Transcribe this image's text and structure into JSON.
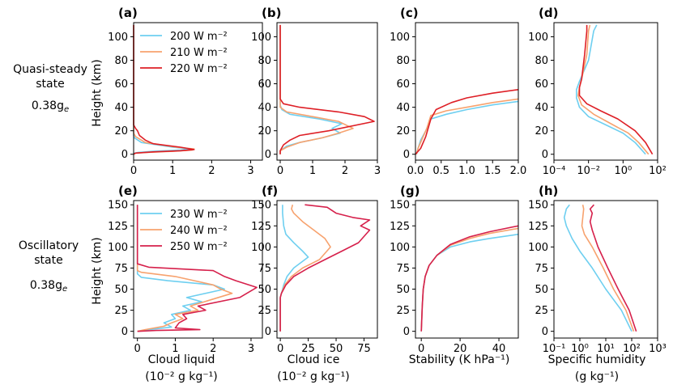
{
  "figure": {
    "rows": [
      {
        "label_lines": [
          "Quasi-steady",
          "state"
        ],
        "gravity": "0.38g",
        "gravity_sub": "e"
      },
      {
        "label_lines": [
          "Oscillatory",
          "state"
        ],
        "gravity": "0.38g",
        "gravity_sub": "e"
      }
    ],
    "ylabel": "Height (km)",
    "column_xlabels": [
      [
        "Cloud liquid",
        "(10⁻² g kg⁻¹)"
      ],
      [
        "Cloud ice",
        "(10⁻² g kg⁻¹)"
      ],
      [
        "Stability (K hPa⁻¹)"
      ],
      [
        "Specific humidity",
        "(g kg⁻¹)"
      ]
    ],
    "legends": [
      {
        "row": 0,
        "entries": [
          {
            "text": "200 W m⁻²",
            "color": "#6ecff0"
          },
          {
            "text": "210 W m⁻²",
            "color": "#f7a26e"
          },
          {
            "text": "220 W m⁻²",
            "color": "#de1f26"
          }
        ]
      },
      {
        "row": 1,
        "entries": [
          {
            "text": "230 W m⁻²",
            "color": "#6ecff0"
          },
          {
            "text": "240 W m⁻²",
            "color": "#f7a26e"
          },
          {
            "text": "250 W m⁻²",
            "color": "#d6204b"
          }
        ]
      }
    ]
  },
  "chart_data": [
    {
      "panel": "(a)",
      "type": "line",
      "xlabel": "",
      "ylabel": "Height (km)",
      "xlim": [
        0,
        3.3
      ],
      "ylim": [
        -5,
        112
      ],
      "xticks": [
        0,
        1,
        2,
        3
      ],
      "xticklabels": [
        "0",
        "1",
        "2",
        "3"
      ],
      "yticks": [
        0,
        20,
        40,
        60,
        80,
        100
      ],
      "yticklabels": [
        "0",
        "20",
        "40",
        "60",
        "80",
        "100"
      ],
      "series": [
        {
          "name": "200 W m⁻²",
          "color": "#6ecff0",
          "x": [
            0,
            0.02,
            0.1,
            0.5,
            1.2,
            1.45,
            1.0,
            0.2,
            0.02,
            0,
            0
          ],
          "y": [
            0,
            1,
            1.5,
            2.5,
            3.5,
            4.5,
            6,
            10,
            14,
            16,
            110
          ]
        },
        {
          "name": "210 W m⁻²",
          "color": "#f7a26e",
          "x": [
            0,
            0.05,
            0.3,
            1.0,
            1.5,
            1.55,
            1.1,
            0.3,
            0.05,
            0,
            0
          ],
          "y": [
            0,
            1,
            1.5,
            2.5,
            3.5,
            4.5,
            6,
            10,
            15,
            18,
            110
          ]
        },
        {
          "name": "220 W m⁻²",
          "color": "#de1f26",
          "x": [
            0,
            0.05,
            0.5,
            1.2,
            1.55,
            1.2,
            0.5,
            0.3,
            0.15,
            0.1,
            0.05,
            0,
            0
          ],
          "y": [
            0,
            1,
            2,
            3,
            4,
            6,
            9,
            12,
            16,
            20,
            22,
            25,
            110
          ]
        }
      ]
    },
    {
      "panel": "(b)",
      "type": "line",
      "xlabel": "",
      "ylabel": "",
      "xlim": [
        -0.1,
        3.0
      ],
      "ylim": [
        -5,
        112
      ],
      "xticks": [
        0,
        1,
        2,
        3
      ],
      "xticklabels": [
        "0",
        "1",
        "2",
        "3"
      ],
      "yticks": [
        0,
        20,
        40,
        60,
        80,
        100
      ],
      "yticklabels": [
        "0",
        "20",
        "40",
        "60",
        "80",
        "100"
      ],
      "series": [
        {
          "name": "200 W m⁻²",
          "color": "#6ecff0",
          "x": [
            0,
            0,
            0.2,
            0.6,
            1.3,
            1.85,
            1.6,
            1.9,
            1.2,
            0.3,
            0.05,
            0,
            0
          ],
          "y": [
            0,
            3,
            7,
            10,
            14,
            18,
            22,
            26,
            30,
            34,
            38,
            42,
            110
          ]
        },
        {
          "name": "210 W m⁻²",
          "color": "#f7a26e",
          "x": [
            0,
            0,
            0.2,
            0.6,
            1.3,
            1.8,
            2.25,
            1.8,
            1.0,
            0.2,
            0,
            0
          ],
          "y": [
            0,
            3,
            6,
            10,
            14,
            18,
            22,
            28,
            32,
            36,
            40,
            110
          ]
        },
        {
          "name": "220 W m⁻²",
          "color": "#de1f26",
          "x": [
            0,
            0,
            0.1,
            0.3,
            0.6,
            1.5,
            2.9,
            2.6,
            1.8,
            0.6,
            0.1,
            0,
            0
          ],
          "y": [
            0,
            3,
            8,
            12,
            16,
            20,
            28,
            32,
            36,
            40,
            43,
            47,
            110
          ]
        }
      ]
    },
    {
      "panel": "(c)",
      "type": "line",
      "xlabel": "",
      "ylabel": "",
      "xlim": [
        0,
        2.0
      ],
      "ylim": [
        -5,
        112
      ],
      "xticks": [
        0,
        0.5,
        1.0,
        1.5,
        2.0
      ],
      "xticklabels": [
        "0.0",
        "0.5",
        "1.0",
        "1.5",
        "2.0"
      ],
      "yticks": [
        0,
        20,
        40,
        60,
        80,
        100
      ],
      "yticklabels": [
        "0",
        "20",
        "40",
        "60",
        "80",
        "100"
      ],
      "series": [
        {
          "name": "200 W m⁻²",
          "color": "#6ecff0",
          "x": [
            0.02,
            0.05,
            0.1,
            0.2,
            0.3,
            0.6,
            1.0,
            1.5,
            2.0
          ],
          "y": [
            0,
            5,
            12,
            20,
            30,
            34,
            38,
            42,
            45
          ]
        },
        {
          "name": "210 W m⁻²",
          "color": "#f7a26e",
          "x": [
            0.02,
            0.05,
            0.12,
            0.22,
            0.3,
            0.6,
            1.0,
            1.5,
            2.0
          ],
          "y": [
            0,
            5,
            12,
            22,
            33,
            37,
            40,
            44,
            47
          ]
        },
        {
          "name": "220 W m⁻²",
          "color": "#de1f26",
          "x": [
            0.0,
            0.1,
            0.2,
            0.3,
            0.4,
            0.7,
            1.0,
            1.5,
            2.0
          ],
          "y": [
            0,
            5,
            15,
            30,
            38,
            44,
            48,
            52,
            55
          ]
        }
      ]
    },
    {
      "panel": "(d)",
      "type": "line",
      "xscale": "log",
      "xlabel": "",
      "ylabel": "",
      "xlim": [
        0.0001,
        100
      ],
      "ylim": [
        -5,
        112
      ],
      "xticks": [
        0.0001,
        0.01,
        1,
        100
      ],
      "xticklabels": [
        "10⁻⁴",
        "10⁻²",
        "10⁰",
        "10²"
      ],
      "yticks": [
        0,
        20,
        40,
        60,
        80,
        100
      ],
      "yticklabels": [
        "0",
        "20",
        "40",
        "60",
        "80",
        "100"
      ],
      "series": [
        {
          "name": "200 W m⁻²",
          "color": "#6ecff0",
          "x": [
            20,
            5,
            1,
            0.1,
            0.01,
            0.003,
            0.002,
            0.002,
            0.003,
            0.01,
            0.02,
            0.03
          ],
          "y": [
            0,
            10,
            18,
            25,
            32,
            40,
            48,
            55,
            62,
            80,
            105,
            110
          ]
        },
        {
          "name": "210 W m⁻²",
          "color": "#f7a26e",
          "x": [
            30,
            8,
            2,
            0.2,
            0.02,
            0.004,
            0.0025,
            0.003,
            0.004,
            0.008,
            0.01,
            0.012
          ],
          "y": [
            0,
            10,
            18,
            26,
            34,
            42,
            50,
            57,
            64,
            85,
            105,
            110
          ]
        },
        {
          "name": "220 W m⁻²",
          "color": "#de1f26",
          "x": [
            50,
            20,
            5,
            0.5,
            0.05,
            0.008,
            0.003,
            0.003,
            0.004,
            0.006,
            0.008,
            0.008
          ],
          "y": [
            0,
            10,
            20,
            30,
            37,
            43,
            50,
            57,
            64,
            85,
            105,
            110
          ]
        }
      ]
    },
    {
      "panel": "(e)",
      "type": "line",
      "xlabel": "Cloud liquid (10⁻² g kg⁻¹)",
      "ylabel": "Height (km)",
      "xlim": [
        -0.1,
        3.3
      ],
      "ylim": [
        -8,
        155
      ],
      "xticks": [
        0,
        1,
        2,
        3
      ],
      "xticklabels": [
        "0",
        "1",
        "2",
        "3"
      ],
      "yticks": [
        0,
        25,
        50,
        75,
        100,
        125,
        150
      ],
      "yticklabels": [
        "0",
        "25",
        "50",
        "75",
        "100",
        "125",
        "150"
      ],
      "series": [
        {
          "name": "230 W m⁻²",
          "color": "#6ecff0",
          "x": [
            0,
            0.3,
            0.9,
            0.7,
            1.0,
            0.9,
            1.4,
            1.2,
            1.7,
            1.3,
            2.3,
            2.0,
            0.8,
            0.1,
            0,
            0
          ],
          "y": [
            0,
            2,
            5,
            10,
            15,
            20,
            25,
            30,
            35,
            40,
            50,
            55,
            60,
            64,
            68,
            150
          ]
        },
        {
          "name": "240 W m⁻²",
          "color": "#f7a26e",
          "x": [
            0,
            0.2,
            0.7,
            0.9,
            1.2,
            1.0,
            1.6,
            1.4,
            2.5,
            2.2,
            2.0,
            1.0,
            0.1,
            0,
            0
          ],
          "y": [
            0,
            2,
            6,
            10,
            15,
            20,
            25,
            30,
            45,
            50,
            55,
            65,
            70,
            72,
            150
          ]
        },
        {
          "name": "250 W m⁻²",
          "color": "#d6204b",
          "x": [
            0,
            0.5,
            1.65,
            1.0,
            1.1,
            1.3,
            1.2,
            1.8,
            1.6,
            2.7,
            3.15,
            2.6,
            2.3,
            2.0,
            0.3,
            0,
            0
          ],
          "y": [
            0,
            1,
            2,
            4,
            10,
            15,
            20,
            25,
            30,
            40,
            52,
            60,
            65,
            72,
            76,
            80,
            150
          ]
        }
      ]
    },
    {
      "panel": "(f)",
      "type": "line",
      "xlabel": "Cloud ice (10⁻² g kg⁻¹)",
      "ylabel": "",
      "xlim": [
        -3,
        87
      ],
      "ylim": [
        -8,
        155
      ],
      "xticks": [
        0,
        25,
        50,
        75
      ],
      "xticklabels": [
        "0",
        "25",
        "50",
        "75"
      ],
      "yticks": [
        0,
        25,
        50,
        75,
        100,
        125,
        150
      ],
      "yticklabels": [
        "0",
        "25",
        "50",
        "75",
        "100",
        "125",
        "150"
      ],
      "series": [
        {
          "name": "230 W m⁻²",
          "color": "#6ecff0",
          "x": [
            0,
            0,
            1,
            3,
            6,
            12,
            25,
            20,
            12,
            5,
            3,
            2,
            2
          ],
          "y": [
            0,
            40,
            45,
            55,
            65,
            75,
            88,
            95,
            105,
            115,
            125,
            140,
            150
          ]
        },
        {
          "name": "240 W m⁻²",
          "color": "#f7a26e",
          "x": [
            0,
            0,
            1,
            4,
            10,
            20,
            35,
            45,
            40,
            30,
            20,
            12,
            10,
            11
          ],
          "y": [
            0,
            40,
            45,
            55,
            65,
            75,
            85,
            100,
            110,
            120,
            130,
            140,
            145,
            150
          ]
        },
        {
          "name": "250 W m⁻²",
          "color": "#d6204b",
          "x": [
            0,
            0,
            1,
            5,
            12,
            25,
            40,
            55,
            70,
            80,
            72,
            80,
            65,
            50,
            42,
            22
          ],
          "y": [
            0,
            40,
            45,
            55,
            65,
            75,
            85,
            95,
            105,
            120,
            125,
            132,
            135,
            140,
            147,
            150
          ]
        }
      ]
    },
    {
      "panel": "(g)",
      "type": "line",
      "xlabel": "Stability (K hPa⁻¹)",
      "ylabel": "",
      "xlim": [
        -3,
        50
      ],
      "ylim": [
        -8,
        155
      ],
      "xticks": [
        0,
        20,
        40
      ],
      "xticklabels": [
        "0",
        "20",
        "40"
      ],
      "yticks": [
        0,
        25,
        50,
        75,
        100,
        125,
        150
      ],
      "yticklabels": [
        "0",
        "25",
        "50",
        "75",
        "100",
        "125",
        "150"
      ],
      "series": [
        {
          "name": "230 W m⁻²",
          "color": "#6ecff0",
          "x": [
            0,
            0.5,
            1,
            2,
            4,
            8,
            15,
            25,
            35,
            50
          ],
          "y": [
            0,
            30,
            50,
            65,
            78,
            90,
            100,
            106,
            110,
            115
          ]
        },
        {
          "name": "240 W m⁻²",
          "color": "#f7a26e",
          "x": [
            0,
            0.5,
            1,
            2,
            4,
            8,
            15,
            25,
            35,
            50
          ],
          "y": [
            0,
            30,
            50,
            65,
            78,
            90,
            102,
            110,
            116,
            122
          ]
        },
        {
          "name": "250 W m⁻²",
          "color": "#d6204b",
          "x": [
            0,
            0.5,
            1,
            2,
            4,
            8,
            15,
            25,
            35,
            50
          ],
          "y": [
            0,
            30,
            50,
            65,
            78,
            90,
            103,
            112,
            118,
            125
          ]
        }
      ]
    },
    {
      "panel": "(h)",
      "type": "line",
      "xscale": "log",
      "xlabel": "Specific humidity (g kg⁻¹)",
      "ylabel": "",
      "xlim": [
        0.1,
        1000
      ],
      "ylim": [
        -8,
        155
      ],
      "xticks": [
        0.1,
        1,
        10,
        100,
        1000
      ],
      "xticklabels": [
        "10⁻¹",
        "10⁰",
        "10¹",
        "10²",
        "10³"
      ],
      "yticks": [
        0,
        25,
        50,
        75,
        100,
        125,
        150
      ],
      "yticklabels": [
        "0",
        "25",
        "50",
        "75",
        "100",
        "125",
        "150"
      ],
      "series": [
        {
          "name": "230 W m⁻²",
          "color": "#6ecff0",
          "x": [
            100,
            40,
            10,
            3,
            1,
            0.5,
            0.3,
            0.25,
            0.3,
            0.4
          ],
          "y": [
            0,
            25,
            50,
            75,
            95,
            110,
            125,
            135,
            145,
            150
          ]
        },
        {
          "name": "240 W m⁻²",
          "color": "#f7a26e",
          "x": [
            120,
            60,
            20,
            8,
            3,
            1.5,
            1.2,
            1.3,
            1.4,
            1.3
          ],
          "y": [
            0,
            25,
            50,
            75,
            100,
            115,
            125,
            135,
            145,
            150
          ]
        },
        {
          "name": "250 W m⁻²",
          "color": "#d6204b",
          "x": [
            150,
            80,
            30,
            12,
            5,
            3,
            2.5,
            3,
            2.5,
            3.5
          ],
          "y": [
            0,
            25,
            50,
            75,
            100,
            120,
            130,
            140,
            145,
            150
          ]
        }
      ]
    }
  ]
}
